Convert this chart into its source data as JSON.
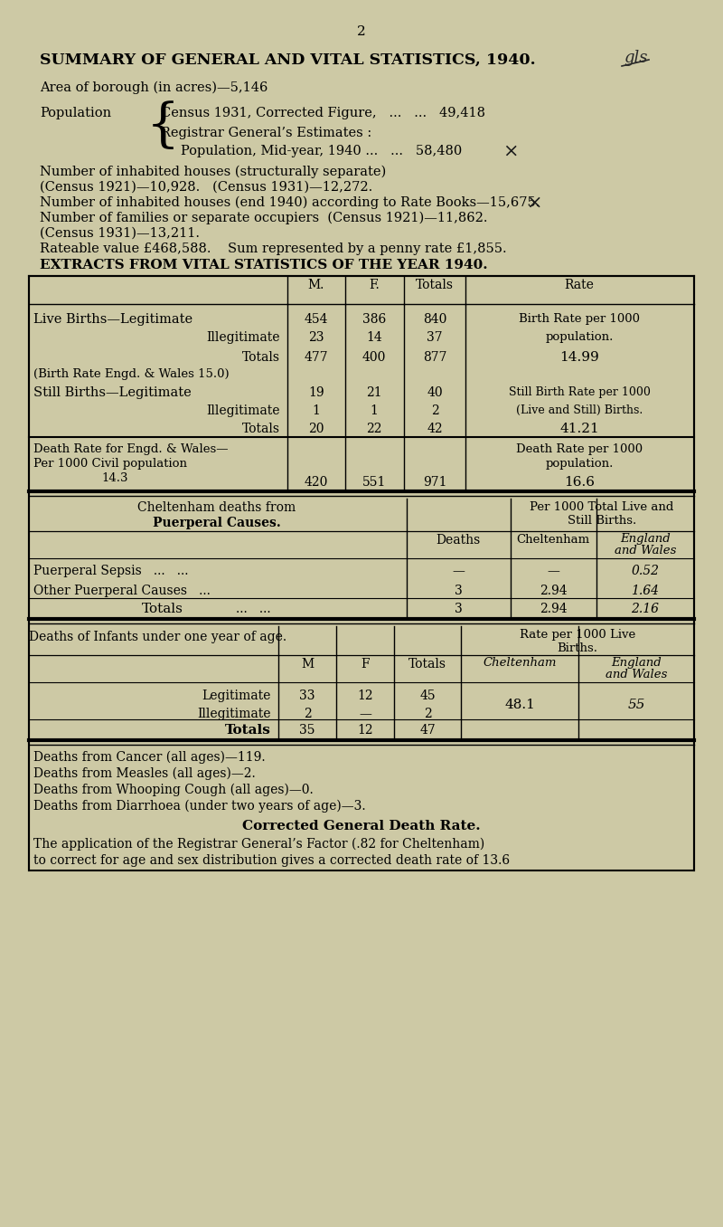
{
  "bg_color": "#cdc9a5",
  "page_number": "2",
  "title": "SUMMARY OF GENERAL AND VITAL STATISTICS, 1940.",
  "area_line": "Area of borough (in acres)—5,146",
  "pop_label": "Population",
  "pop_line1": "Census 1931, Corrected Figure,   ...   ...   49,418",
  "pop_line2": "Registrar General’s Estimates :",
  "pop_line3": "Population, Mid-year, 1940 ...   ...   58,480",
  "houses_line1": "Number of inhabited houses (structurally separate)",
  "houses_line2": "(Census 1921)—10,928.   (Census 1931)—12,272.",
  "houses_line3": "Number of inhabited houses (end 1940) according to Rate Books—15,675.",
  "families_line1": "Number of families or separate occupiers  (Census 1921)—11,862.",
  "families_line2": "(Census 1931)—13,211.",
  "rateable_line": "Rateable value £468,588.    Sum represented by a penny rate £1,855.",
  "extracts_title": "EXTRACTS FROM VITAL STATISTICS OF THE YEAR 1940.",
  "deaths_cancer": "Deaths from Cancer (all ages)—119.",
  "deaths_measles": "Deaths from Measles (all ages)—2.",
  "deaths_whooping": "Deaths from Whooping Cough (all ages)—0.",
  "deaths_diarrhoea": "Deaths from Diarrhoea (under two years of age)—3.",
  "corrected_title": "Corrected General Death Rate.",
  "corrected_text1": "The application of the Registrar General’s Factor (.82 for Cheltenham)",
  "corrected_text2": "to correct for age and sex distribution gives a corrected death rate of 13.6"
}
